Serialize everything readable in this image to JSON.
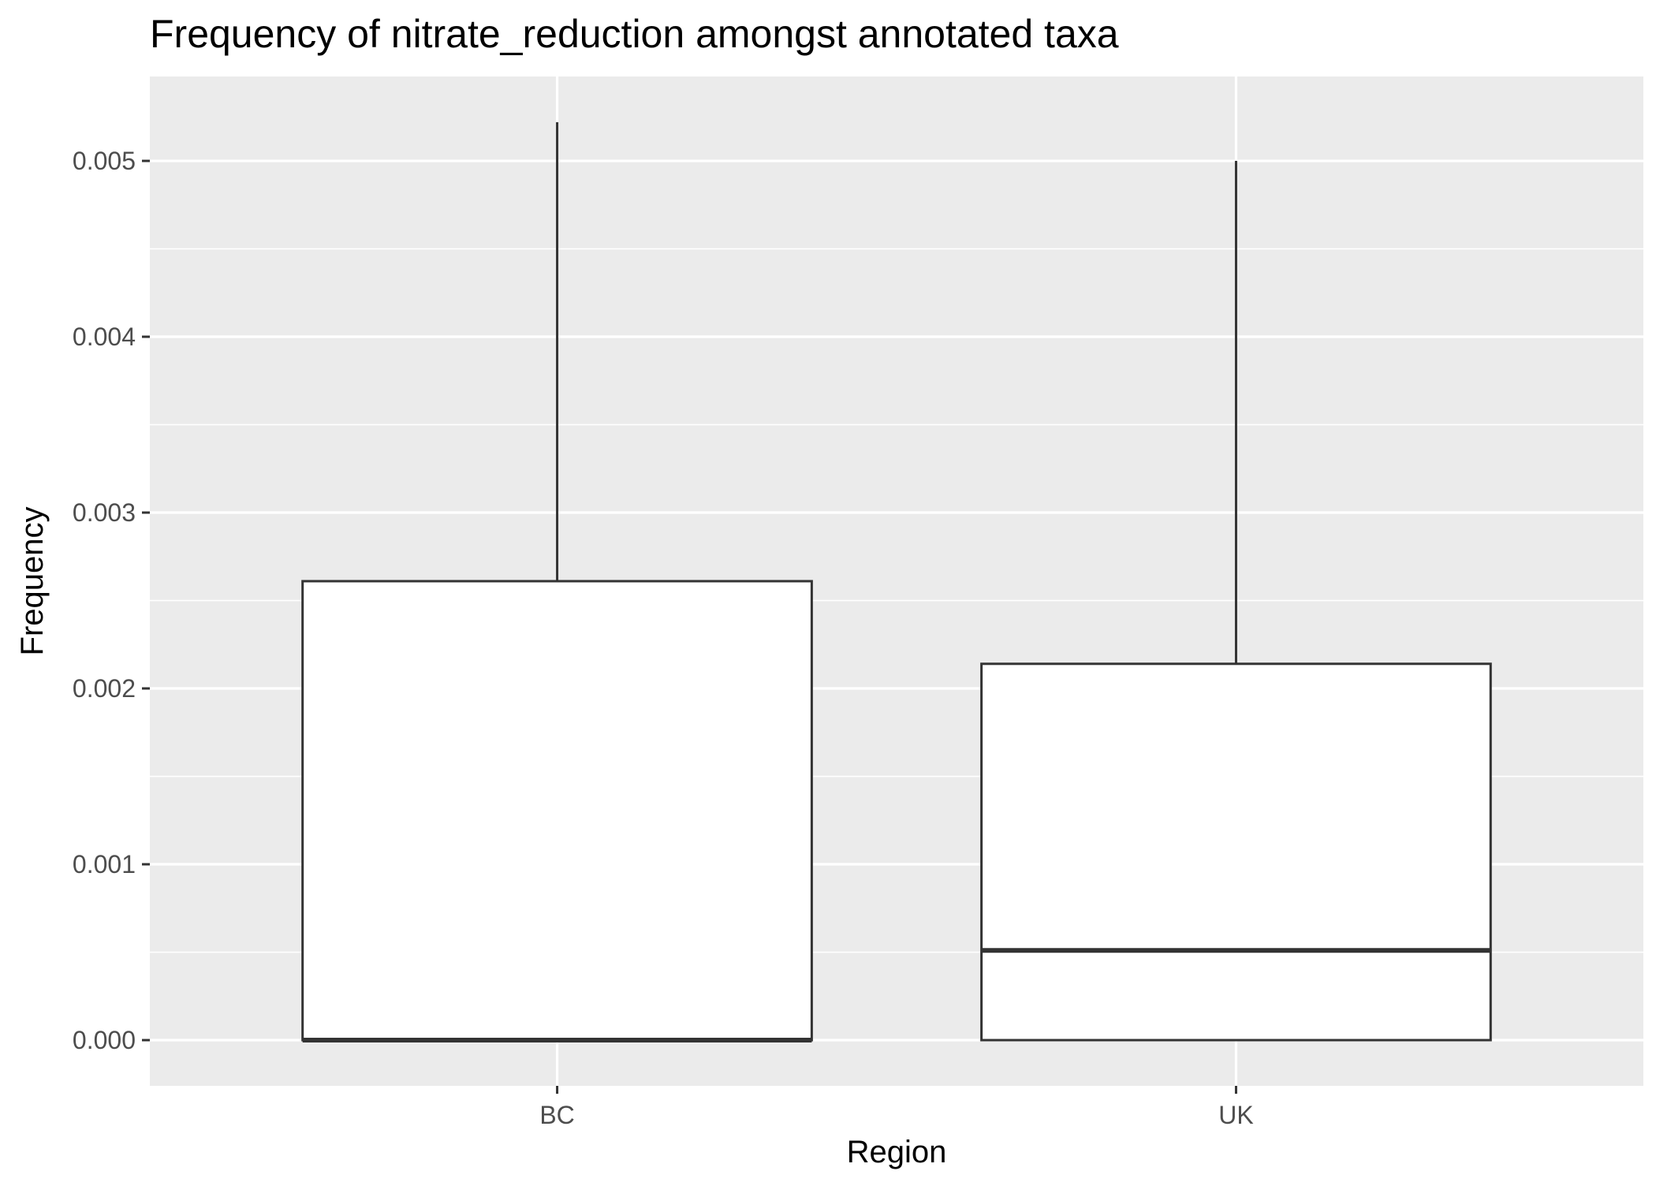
{
  "chart_data": {
    "type": "boxplot",
    "title": "Frequency of nitrate_reduction amongst annotated taxa",
    "xlabel": "Region",
    "ylabel": "Frequency",
    "ylim": [
      -0.00026,
      0.00548
    ],
    "y_ticks": [
      "0.000",
      "0.001",
      "0.002",
      "0.003",
      "0.004",
      "0.005"
    ],
    "y_tick_values": [
      0.0,
      0.001,
      0.002,
      0.003,
      0.004,
      0.005
    ],
    "grid": true,
    "legend": "none",
    "categories": [
      "BC",
      "UK"
    ],
    "boxes": [
      {
        "category": "BC",
        "lower_whisker": 0.0,
        "q1": 0.0,
        "median": 0.0,
        "q3": 0.00261,
        "upper_whisker": 0.00522
      },
      {
        "category": "UK",
        "lower_whisker": 0.0,
        "q1": 0.0,
        "median": 0.00051,
        "q3": 0.00214,
        "upper_whisker": 0.005
      }
    ],
    "colors": {
      "panel_background": "#ebebeb",
      "grid": "#ffffff",
      "box_fill": "#ffffff",
      "box_line": "#333333",
      "tick_text": "#4d4d4d"
    }
  }
}
